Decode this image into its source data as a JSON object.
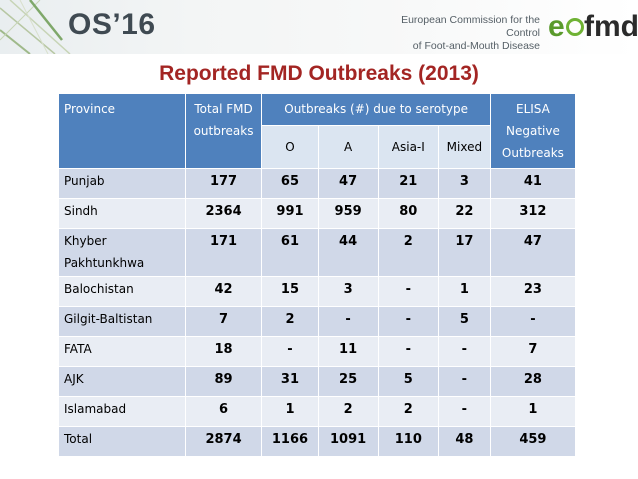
{
  "header": {
    "event_title": "OS’16",
    "org_line1": "European Commission for the Control",
    "org_line2": "of Foot-and-Mouth Disease",
    "logo_e": "e",
    "logo_fmd": "fmd"
  },
  "slide_title": "Reported FMD Outbreaks (2013)",
  "table": {
    "headers": {
      "province": "Province",
      "total": "Total FMD outbreaks",
      "serotype_group": "Outbreaks (#) due to serotype",
      "elisa": "ELISA Negative Outbreaks"
    },
    "serotypes": [
      "O",
      "A",
      "Asia-I",
      "Mixed"
    ],
    "rows": [
      {
        "province": "Punjab",
        "total": "177",
        "o": "65",
        "a": "47",
        "asia1": "21",
        "mixed": "3",
        "elisa": "41"
      },
      {
        "province": "Sindh",
        "total": "2364",
        "o": "991",
        "a": "959",
        "asia1": "80",
        "mixed": "22",
        "elisa": "312"
      },
      {
        "province": "Khyber Pakhtunkhwa",
        "total": "171",
        "o": "61",
        "a": "44",
        "asia1": "2",
        "mixed": "17",
        "elisa": "47"
      },
      {
        "province": "Balochistan",
        "total": "42",
        "o": "15",
        "a": "3",
        "asia1": "-",
        "mixed": "1",
        "elisa": "23"
      },
      {
        "province": "Gilgit-Baltistan",
        "total": "7",
        "o": "2",
        "a": "-",
        "asia1": "-",
        "mixed": "5",
        "elisa": "-"
      },
      {
        "province": "FATA",
        "total": "18",
        "o": "-",
        "a": "11",
        "asia1": "-",
        "mixed": "-",
        "elisa": "7"
      },
      {
        "province": "AJK",
        "total": "89",
        "o": "31",
        "a": "25",
        "asia1": "5",
        "mixed": "-",
        "elisa": "28"
      },
      {
        "province": "Islamabad",
        "total": "6",
        "o": "1",
        "a": "2",
        "asia1": "2",
        "mixed": "-",
        "elisa": "1"
      },
      {
        "province": "Total",
        "total": "2874",
        "o": "1166",
        "a": "1091",
        "asia1": "110",
        "mixed": "48",
        "elisa": "459"
      }
    ]
  }
}
